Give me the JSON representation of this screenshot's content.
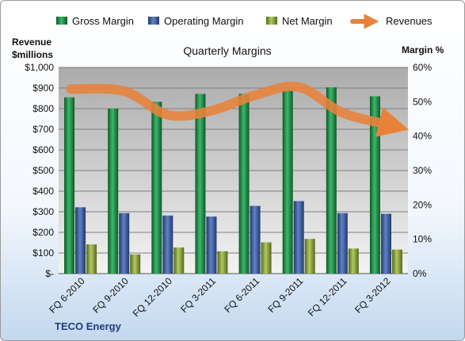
{
  "chart_data": {
    "type": "bar",
    "title": "Quarterly Margins",
    "ylabel_left_line1": "Revenue",
    "ylabel_left_line2": "$millions",
    "ylabel_right": "Margin %",
    "footer": "TECO Energy",
    "categories": [
      "FQ 6-2010",
      "FQ 9-2010",
      "FQ 12-2010",
      "FQ 3-2011",
      "FQ 6-2011",
      "FQ 9-2011",
      "FQ 12-2011",
      "FQ 3-2012"
    ],
    "left_axis": {
      "ylim": [
        0,
        1000
      ],
      "ticks": [
        0,
        100,
        200,
        300,
        400,
        500,
        600,
        700,
        800,
        900,
        1000
      ],
      "tick_labels": [
        "$-",
        "$100",
        "$200",
        "$300",
        "$400",
        "$500",
        "$600",
        "$700",
        "$800",
        "$900",
        "$1,000"
      ]
    },
    "right_axis": {
      "ylim": [
        0,
        60
      ],
      "ticks": [
        0,
        10,
        20,
        30,
        40,
        50,
        60
      ],
      "tick_labels": [
        "0%",
        "10%",
        "20%",
        "30%",
        "40%",
        "50%",
        "60%"
      ]
    },
    "series": [
      {
        "name": "Gross Margin",
        "type": "bar",
        "axis": "right",
        "color": "#1e8a45",
        "values": [
          51.3,
          48.0,
          50.0,
          52.3,
          52.3,
          53.4,
          54.2,
          51.6
        ]
      },
      {
        "name": "Operating Margin",
        "type": "bar",
        "axis": "right",
        "color": "#3d5e9e",
        "values": [
          19.3,
          17.6,
          16.9,
          16.6,
          19.7,
          21.1,
          17.6,
          17.4
        ]
      },
      {
        "name": "Net Margin",
        "type": "bar",
        "axis": "right",
        "color": "#8ca640",
        "values": [
          8.5,
          5.6,
          7.6,
          6.5,
          9.1,
          10.1,
          7.3,
          7.0
        ]
      },
      {
        "name": "Revenues",
        "type": "line",
        "axis": "left",
        "color": "#e8823a",
        "values": [
          895,
          885,
          770,
          790,
          865,
          905,
          780,
          720
        ]
      }
    ],
    "legend_position": "top",
    "grid": true
  }
}
